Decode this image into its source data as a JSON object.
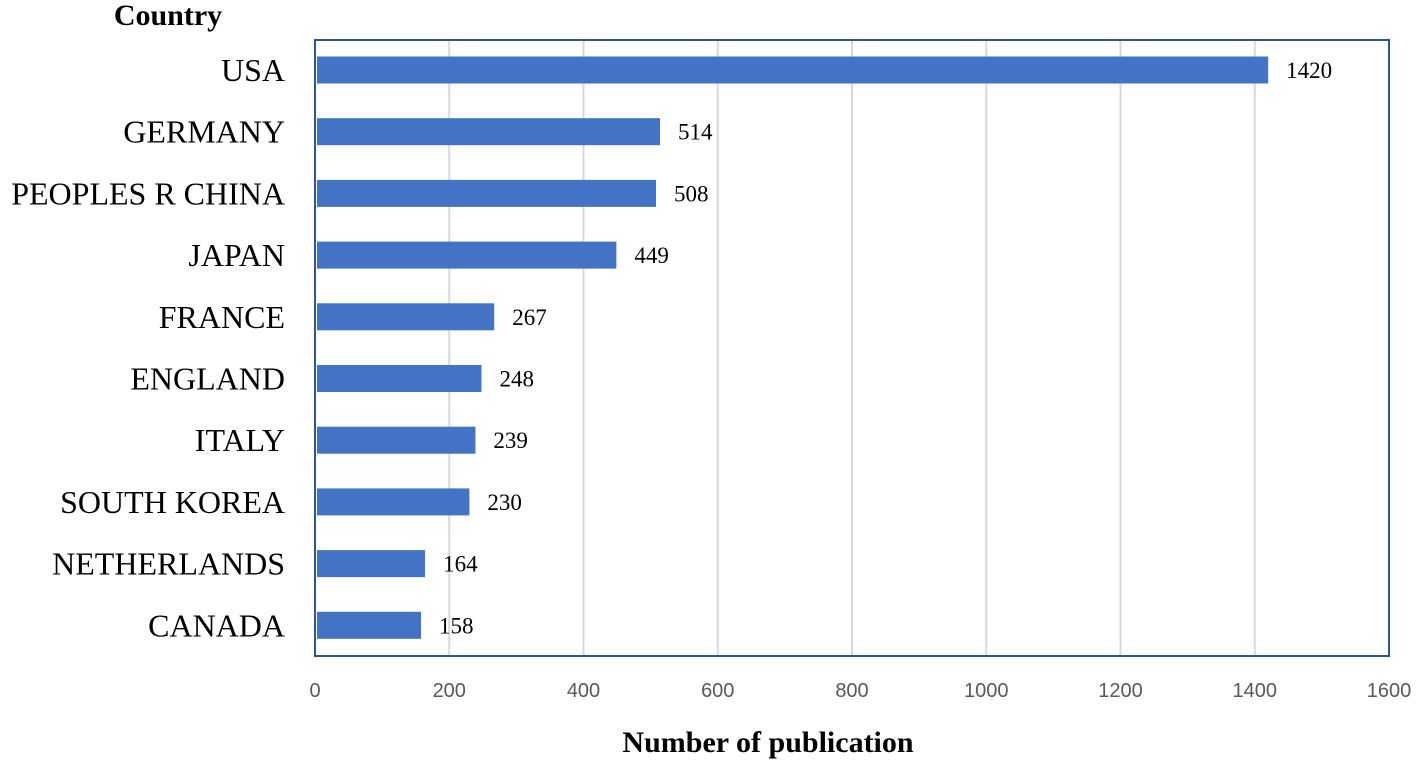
{
  "chart_data": {
    "type": "bar",
    "orientation": "horizontal",
    "categories": [
      "USA",
      "GERMANY",
      "PEOPLES R CHINA",
      "JAPAN",
      "FRANCE",
      "ENGLAND",
      "ITALY",
      "SOUTH KOREA",
      "NETHERLANDS",
      "CANADA"
    ],
    "values": [
      1420,
      514,
      508,
      449,
      267,
      248,
      239,
      230,
      164,
      158
    ],
    "ylabel": "Country",
    "xlabel": "Number of publication",
    "xlim": [
      0,
      1600
    ],
    "x_ticks": [
      0,
      200,
      400,
      600,
      800,
      1000,
      1200,
      1400,
      1600
    ],
    "grid": "vertical",
    "data_labels": true,
    "legend": "none",
    "bar_color": "#4472C4",
    "frame_color": "#2F5597",
    "grid_color": "#D9D9D9"
  }
}
